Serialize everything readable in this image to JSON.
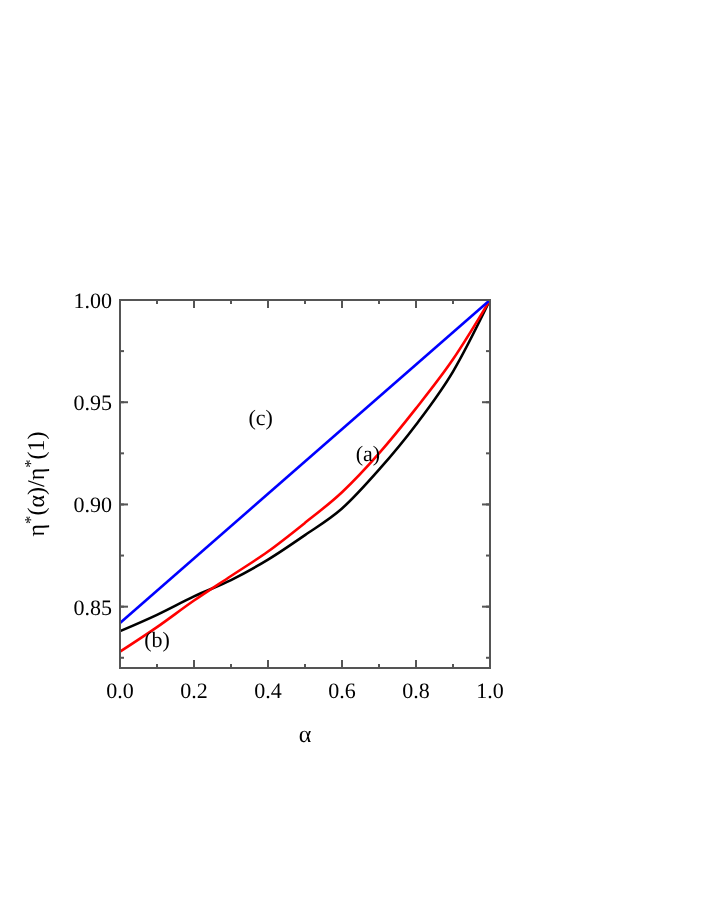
{
  "chart_data": {
    "type": "line",
    "xlabel": "α",
    "ylabel": "η$^{*}$(α)/η$^{*}$(1)",
    "xlim": [
      0,
      1
    ],
    "ylim": [
      0.82,
      1.0
    ],
    "xticks": [
      {
        "value": 0,
        "label": "0.0"
      },
      0.2,
      0.4,
      0.6,
      0.8,
      {
        "value": 1,
        "label": "1.0"
      }
    ],
    "yticks": [
      0.85,
      {
        "value": 0.9,
        "label": "0.90"
      },
      0.95,
      {
        "value": 1,
        "label": "1.00"
      }
    ],
    "grid": false,
    "marker": "none",
    "line_style": "solid",
    "series": [
      {
        "color": "#000000",
        "x": [
          0,
          0.1,
          0.2,
          0.3,
          0.4,
          0.5,
          0.6,
          0.7,
          0.8,
          0.9,
          1.0
        ],
        "values": [
          0.838,
          0.846,
          0.855,
          0.863,
          0.873,
          0.885,
          0.898,
          0.917,
          0.939,
          0.965,
          1.0
        ]
      },
      {
        "color": "#ff0000",
        "x": [
          0,
          0.1,
          0.2,
          0.3,
          0.4,
          0.5,
          0.6,
          0.7,
          0.8,
          0.9,
          1.0
        ],
        "values": [
          0.828,
          0.84,
          0.853,
          0.865,
          0.877,
          0.891,
          0.906,
          0.925,
          0.947,
          0.971,
          1.0
        ]
      },
      {
        "color": "#0000ff",
        "x": [
          0,
          1.0
        ],
        "values": [
          0.842,
          1.0
        ]
      }
    ],
    "annotations": [
      {
        "text": "(a)",
        "x": 0.67,
        "y": 0.925
      },
      {
        "text": "(b)",
        "x": 0.1,
        "y": 0.834
      },
      "(c)"
    ]
  }
}
